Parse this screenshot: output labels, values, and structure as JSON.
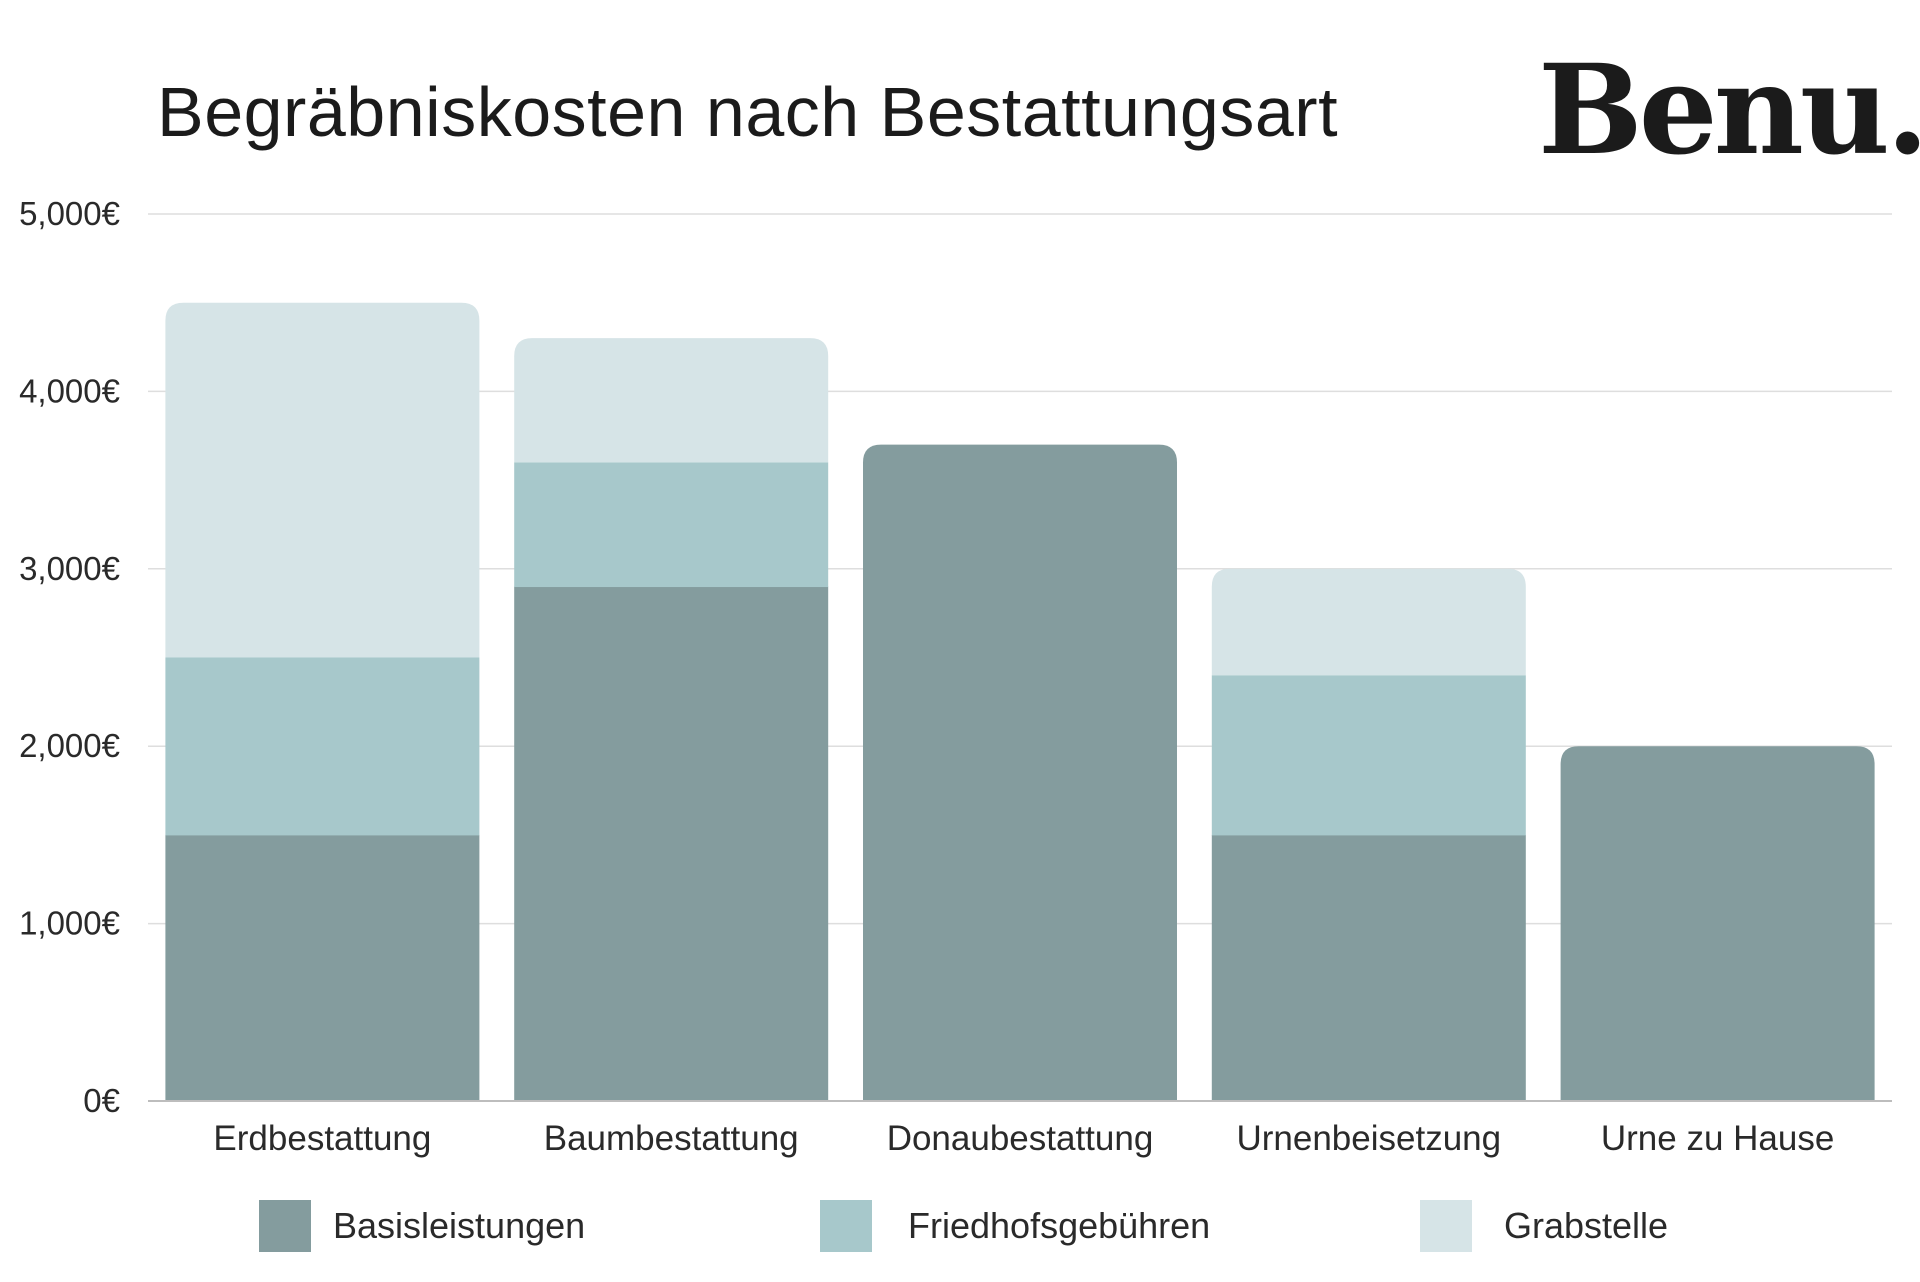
{
  "logo": "Benu.",
  "chart_data": {
    "type": "bar",
    "stacked": true,
    "title": "Begräbniskosten nach Bestattungsart",
    "xlabel": "",
    "ylabel": "",
    "ylim": [
      0,
      5000
    ],
    "y_ticks": [
      0,
      1000,
      2000,
      3000,
      4000,
      5000
    ],
    "y_tick_labels": [
      "0€",
      "1,000€",
      "2,000€",
      "3,000€",
      "4,000€",
      "5,000€"
    ],
    "grid": true,
    "legend_position": "bottom",
    "categories": [
      "Erdbestattung",
      "Baumbestattung",
      "Donaubestattung",
      "Urnenbeisetzung",
      "Urne zu Hause"
    ],
    "series": [
      {
        "name": "Basisleistungen",
        "color": "#849c9e",
        "values": [
          1500,
          2900,
          3700,
          1500,
          2000
        ]
      },
      {
        "name": "Friedhofsgebühren",
        "color": "#a7c8cb",
        "values": [
          1000,
          700,
          0,
          900,
          0
        ]
      },
      {
        "name": "Grabstelle",
        "color": "#d6e4e7",
        "values": [
          2000,
          700,
          0,
          600,
          0
        ]
      }
    ]
  }
}
